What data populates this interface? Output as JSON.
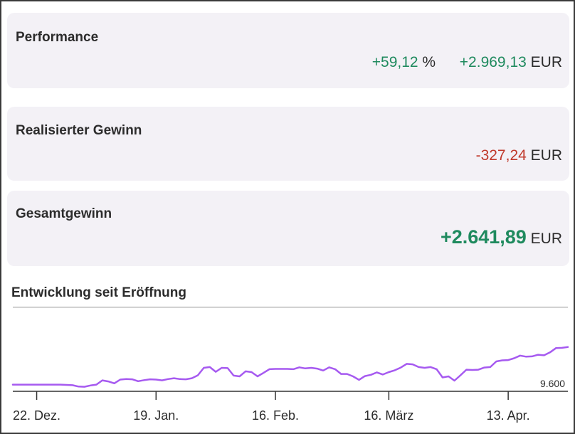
{
  "performance": {
    "title": "Performance",
    "percent": "+59,12",
    "percent_unit": "%",
    "amount": "+2.969,13",
    "amount_unit": "EUR"
  },
  "realized": {
    "title": "Realisierter Gewinn",
    "amount": "-327,24",
    "amount_unit": "EUR"
  },
  "total": {
    "title": "Gesamtgewinn",
    "amount": "+2.641,89",
    "amount_unit": "EUR"
  },
  "colors": {
    "positive": "#1f8a5e",
    "negative": "#c0392b",
    "line": "#a65af0"
  },
  "chart_data": {
    "type": "line",
    "title": "Entwicklung seit Eröffnung",
    "xlabel": "",
    "ylabel": "",
    "baseline_label": "9.600",
    "baseline_value": 9600,
    "ylim": [
      9550,
      12750
    ],
    "top_reference": 12700,
    "x_ticks": [
      "22. Dez.",
      "19. Jan.",
      "16. Feb.",
      "16. März",
      "13. Apr."
    ],
    "x_tick_index": [
      4,
      24,
      44,
      63,
      83
    ],
    "grid": false,
    "series": [
      {
        "values": [
          9800,
          9800,
          9800,
          9800,
          9800,
          9800,
          9800,
          9800,
          9800,
          9790,
          9780,
          9730,
          9720,
          9770,
          9800,
          9960,
          9920,
          9850,
          9990,
          10010,
          10000,
          9930,
          9970,
          10000,
          9990,
          9960,
          10010,
          10040,
          10010,
          10000,
          10040,
          10150,
          10430,
          10460,
          10280,
          10430,
          10420,
          10140,
          10110,
          10300,
          10270,
          10110,
          10240,
          10380,
          10390,
          10390,
          10390,
          10380,
          10450,
          10410,
          10430,
          10400,
          10330,
          10450,
          10380,
          10200,
          10200,
          10110,
          9980,
          10120,
          10170,
          10260,
          10180,
          10270,
          10340,
          10440,
          10580,
          10560,
          10460,
          10430,
          10460,
          10380,
          10070,
          10110,
          9950,
          10150,
          10360,
          10350,
          10360,
          10440,
          10460,
          10670,
          10710,
          10720,
          10790,
          10890,
          10850,
          10860,
          10920,
          10900,
          11010,
          11170,
          11180,
          11210
        ]
      }
    ]
  }
}
